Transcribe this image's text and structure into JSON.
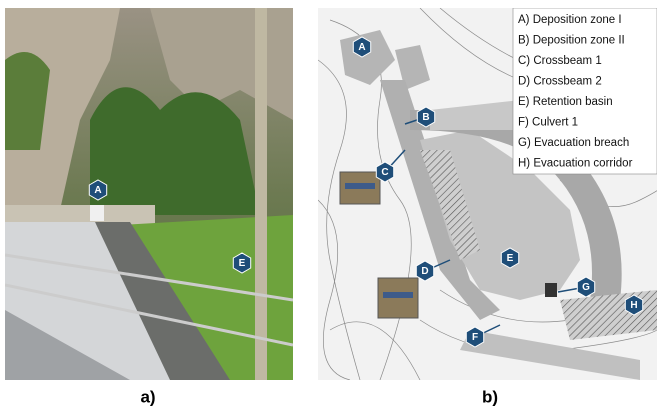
{
  "panel_a": {
    "caption": "a)",
    "markers": [
      "A",
      "E"
    ]
  },
  "panel_b": {
    "caption": "b)",
    "legend": [
      "A) Deposition zone I",
      "B) Deposition zone II",
      "C) Crossbeam 1",
      "D) Crossbeam 2",
      "E) Retention basin",
      "F) Culvert 1",
      "G) Evacuation breach",
      "H) Evacuation corridor"
    ],
    "markers": [
      "A",
      "B",
      "C",
      "D",
      "E",
      "F",
      "G",
      "H"
    ]
  }
}
